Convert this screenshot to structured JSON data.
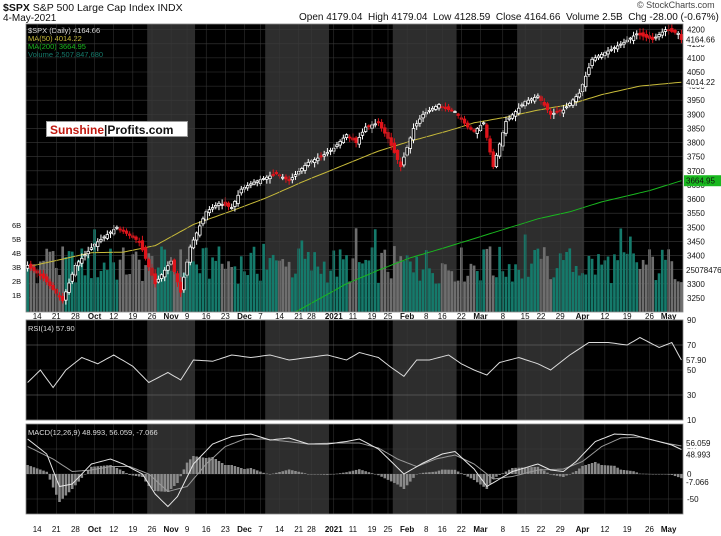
{
  "header": {
    "symbol": "$SPX",
    "name": "S&P 500 Large Cap Index",
    "exchange": "INDX",
    "date": "4-May-2021",
    "open_label": "Open",
    "open": "4179.04",
    "high_label": "High",
    "high": "4179.04",
    "low_label": "Low",
    "low": "4128.59",
    "close_label": "Close",
    "close": "4164.66",
    "volume_label": "Volume",
    "volume": "2.5B",
    "chg_label": "Chg",
    "chg": "-28.00 (-0.67%)",
    "watermark": "© StockCharts.com"
  },
  "legend": {
    "price": "$SPX (Daily) 4164.66",
    "ma50": "MA(50) 4014.22",
    "ma200": "MA(200) 3664.95",
    "volume": "Volume 2,507,847,680"
  },
  "logo": {
    "part1": "Sunshine",
    "part2": "Profits.com"
  },
  "colors": {
    "background": "#000000",
    "band": "#2d2d2d",
    "grid": "#3a3a3a",
    "up_candle": "#ffffff",
    "down_candle": "#e0141b",
    "ma50": "#c8bb3a",
    "ma200": "#19b81f",
    "volume_up": "#157a6b",
    "volume_down": "#6e6e6e",
    "rsi_line": "#dcdcdc",
    "macd_line": "#e6e6e6",
    "signal_line": "#9a9a9a",
    "histogram": "#8a8a8a",
    "last_price_marker": "#e0141b"
  },
  "chart_data": [
    {
      "type": "candlestick",
      "title": "$SPX S&P 500 Large Cap Index",
      "ylim": [
        3200,
        4220
      ],
      "y_ticks": [
        "3250",
        "3300",
        "3350",
        "3400",
        "3450",
        "3500",
        "3550",
        "3600",
        "3650",
        "3700",
        "3750",
        "3800",
        "3850",
        "3900",
        "3950",
        "4000",
        "4050",
        "4100",
        "4150",
        "4200"
      ],
      "x_ticks": [
        "14",
        "21",
        "28",
        "Oct",
        "12",
        "19",
        "26",
        "Nov",
        "9",
        "16",
        "23",
        "Dec",
        "7",
        "14",
        "21",
        "28",
        "2021",
        "11",
        "19",
        "25",
        "Feb",
        "8",
        "16",
        "22",
        "Mar",
        "8",
        "15",
        "22",
        "29",
        "Apr",
        "12",
        "19",
        "26",
        "May"
      ],
      "x_ticks_bold": [
        "Oct",
        "Nov",
        "Dec",
        "2021",
        "Feb",
        "Mar",
        "Apr",
        "May"
      ],
      "close_path": [
        [
          0,
          3365
        ],
        [
          5,
          3320
        ],
        [
          11,
          3240
        ],
        [
          15,
          3365
        ],
        [
          21,
          3440
        ],
        [
          28,
          3500
        ],
        [
          35,
          3450
        ],
        [
          40,
          3300
        ],
        [
          45,
          3380
        ],
        [
          48,
          3270
        ],
        [
          51,
          3430
        ],
        [
          56,
          3555
        ],
        [
          60,
          3585
        ],
        [
          64,
          3570
        ],
        [
          67,
          3635
        ],
        [
          71,
          3660
        ],
        [
          78,
          3690
        ],
        [
          82,
          3665
        ],
        [
          88,
          3730
        ],
        [
          92,
          3750
        ],
        [
          96,
          3780
        ],
        [
          100,
          3828
        ],
        [
          103,
          3800
        ],
        [
          106,
          3855
        ],
        [
          110,
          3870
        ],
        [
          113,
          3815
        ],
        [
          117,
          3715
        ],
        [
          121,
          3850
        ],
        [
          124,
          3900
        ],
        [
          129,
          3935
        ],
        [
          131,
          3920
        ],
        [
          134,
          3910
        ],
        [
          138,
          3855
        ],
        [
          140,
          3840
        ],
        [
          143,
          3870
        ],
        [
          146,
          3715
        ],
        [
          150,
          3875
        ],
        [
          156,
          3945
        ],
        [
          160,
          3965
        ],
        [
          164,
          3900
        ],
        [
          168,
          3915
        ],
        [
          173,
          3975
        ],
        [
          177,
          4095
        ],
        [
          183,
          4130
        ],
        [
          187,
          4155
        ],
        [
          191,
          4185
        ],
        [
          196,
          4165
        ],
        [
          200,
          4200
        ],
        [
          204,
          4187
        ],
        [
          205,
          4165
        ]
      ],
      "ma50_path": [
        [
          0,
          3360
        ],
        [
          10,
          3385
        ],
        [
          20,
          3410
        ],
        [
          30,
          3412
        ],
        [
          40,
          3435
        ],
        [
          52,
          3510
        ],
        [
          64,
          3558
        ],
        [
          75,
          3605
        ],
        [
          86,
          3660
        ],
        [
          98,
          3715
        ],
        [
          110,
          3770
        ],
        [
          120,
          3805
        ],
        [
          132,
          3842
        ],
        [
          140,
          3870
        ],
        [
          150,
          3890
        ],
        [
          160,
          3915
        ],
        [
          170,
          3935
        ],
        [
          180,
          3970
        ],
        [
          192,
          4000
        ],
        [
          205,
          4014
        ]
      ],
      "ma200_path": [
        [
          84,
          3200
        ],
        [
          100,
          3300
        ],
        [
          110,
          3348
        ],
        [
          120,
          3392
        ],
        [
          130,
          3425
        ],
        [
          140,
          3460
        ],
        [
          150,
          3495
        ],
        [
          160,
          3530
        ],
        [
          170,
          3555
        ],
        [
          180,
          3590
        ],
        [
          195,
          3630
        ],
        [
          205,
          3665
        ]
      ],
      "last_price": "4164.66",
      "ma50_last": "4014.22",
      "ma200_last": "3664.95"
    },
    {
      "type": "bar",
      "name": "Volume",
      "y_ticks": [
        "1B",
        "2B",
        "3B",
        "4B",
        "5B",
        "6B"
      ],
      "last_value": "2507847680"
    },
    {
      "type": "line",
      "name": "RSI(14)",
      "label": "RSI(14) 57.90",
      "ylim": [
        10,
        90
      ],
      "y_ticks": [
        "90",
        "70",
        "50",
        "30",
        "10"
      ],
      "path": [
        [
          0,
          40
        ],
        [
          4,
          50
        ],
        [
          8,
          36
        ],
        [
          12,
          50
        ],
        [
          17,
          60
        ],
        [
          22,
          55
        ],
        [
          27,
          62
        ],
        [
          33,
          53
        ],
        [
          38,
          40
        ],
        [
          44,
          48
        ],
        [
          48,
          42
        ],
        [
          52,
          58
        ],
        [
          58,
          57
        ],
        [
          64,
          62
        ],
        [
          70,
          60
        ],
        [
          76,
          62
        ],
        [
          82,
          58
        ],
        [
          88,
          60
        ],
        [
          94,
          62
        ],
        [
          100,
          58
        ],
        [
          104,
          64
        ],
        [
          110,
          60
        ],
        [
          114,
          52
        ],
        [
          118,
          45
        ],
        [
          122,
          58
        ],
        [
          126,
          58
        ],
        [
          132,
          62
        ],
        [
          136,
          55
        ],
        [
          140,
          50
        ],
        [
          144,
          46
        ],
        [
          148,
          56
        ],
        [
          154,
          60
        ],
        [
          160,
          55
        ],
        [
          164,
          50
        ],
        [
          170,
          62
        ],
        [
          176,
          72
        ],
        [
          182,
          72
        ],
        [
          188,
          70
        ],
        [
          192,
          76
        ],
        [
          198,
          68
        ],
        [
          202,
          72
        ],
        [
          205,
          58
        ]
      ],
      "last_value": "57.90"
    },
    {
      "type": "line",
      "name": "MACD",
      "label": "MACD(12,26,9) 48.993, 56.059, -7.066",
      "ylim": [
        -80,
        100
      ],
      "y_ticks": [
        "50",
        "0",
        "-50"
      ],
      "macd": [
        [
          0,
          70
        ],
        [
          6,
          40
        ],
        [
          10,
          -25
        ],
        [
          14,
          -20
        ],
        [
          20,
          20
        ],
        [
          26,
          30
        ],
        [
          30,
          20
        ],
        [
          36,
          0
        ],
        [
          40,
          -40
        ],
        [
          44,
          -65
        ],
        [
          47,
          -45
        ],
        [
          52,
          20
        ],
        [
          58,
          60
        ],
        [
          64,
          75
        ],
        [
          70,
          80
        ],
        [
          76,
          68
        ],
        [
          82,
          72
        ],
        [
          88,
          60
        ],
        [
          94,
          60
        ],
        [
          100,
          65
        ],
        [
          104,
          70
        ],
        [
          110,
          50
        ],
        [
          114,
          25
        ],
        [
          118,
          0
        ],
        [
          124,
          22
        ],
        [
          130,
          40
        ],
        [
          134,
          45
        ],
        [
          140,
          10
        ],
        [
          144,
          -25
        ],
        [
          148,
          -10
        ],
        [
          152,
          5
        ],
        [
          160,
          20
        ],
        [
          164,
          8
        ],
        [
          168,
          5
        ],
        [
          172,
          25
        ],
        [
          178,
          65
        ],
        [
          184,
          80
        ],
        [
          190,
          78
        ],
        [
          196,
          68
        ],
        [
          202,
          58
        ],
        [
          205,
          49
        ]
      ],
      "signal": [
        [
          0,
          55
        ],
        [
          8,
          30
        ],
        [
          14,
          5
        ],
        [
          20,
          8
        ],
        [
          26,
          15
        ],
        [
          32,
          15
        ],
        [
          38,
          0
        ],
        [
          44,
          -35
        ],
        [
          50,
          -25
        ],
        [
          56,
          20
        ],
        [
          62,
          55
        ],
        [
          68,
          70
        ],
        [
          74,
          70
        ],
        [
          80,
          66
        ],
        [
          88,
          60
        ],
        [
          96,
          62
        ],
        [
          104,
          62
        ],
        [
          110,
          52
        ],
        [
          116,
          30
        ],
        [
          122,
          15
        ],
        [
          128,
          30
        ],
        [
          134,
          38
        ],
        [
          140,
          20
        ],
        [
          146,
          -10
        ],
        [
          152,
          -5
        ],
        [
          160,
          8
        ],
        [
          168,
          10
        ],
        [
          174,
          25
        ],
        [
          180,
          55
        ],
        [
          186,
          72
        ],
        [
          192,
          74
        ],
        [
          200,
          62
        ],
        [
          205,
          56
        ]
      ],
      "macd_last": "48.993",
      "signal_last": "56.059",
      "histogram_last": "-7.066"
    }
  ]
}
